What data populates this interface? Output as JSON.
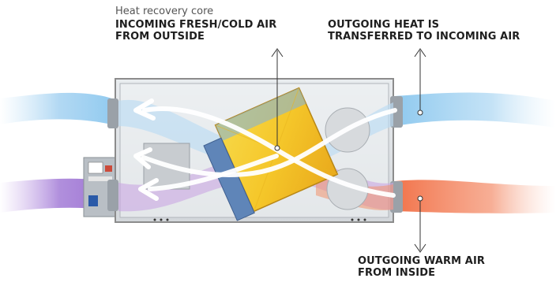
{
  "labels": {
    "core_title": "Heat recovery core",
    "incoming": [
      "INCOMING FRESH/COLD AIR",
      "FROM OUTSIDE"
    ],
    "outgoing_heat": [
      "OUTGOING HEAT IS",
      "TRANSFERRED TO INCOMING AIR"
    ],
    "outgoing_warm": [
      "OUTGOING WARM AIR",
      "FROM INSIDE"
    ]
  },
  "colors": {
    "cold_air": "#8ec9ef",
    "warm_air": "#f2734a",
    "purple_air": "#9a6fd0",
    "core_yellow": "#f5cf2c",
    "core_blue": "#3f7fcf",
    "unit_frame": "#8c8c8c"
  }
}
